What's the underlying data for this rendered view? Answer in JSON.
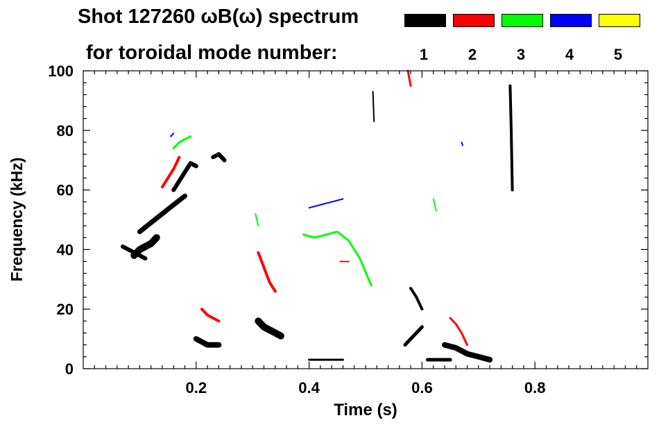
{
  "chart_data": {
    "type": "heatmap",
    "title": "Shot 127260 ωB(ω) spectrum",
    "subtitle": "for toroidal mode number:",
    "xlabel": "Time (s)",
    "ylabel": "Frequency (kHz)",
    "xlim": [
      0.0,
      1.0
    ],
    "ylim": [
      0,
      100
    ],
    "xticks": [
      0.2,
      0.4,
      0.6,
      0.8
    ],
    "xtick_labels": [
      "0.2",
      "0.4",
      "0.6",
      "0.8"
    ],
    "yticks": [
      0,
      20,
      40,
      60,
      80,
      100
    ],
    "ytick_labels": [
      "0",
      "20",
      "40",
      "60",
      "80",
      "100"
    ],
    "grid": false,
    "legend_placement": "top-right",
    "legend": [
      {
        "name": "1",
        "color": "#000000"
      },
      {
        "name": "2",
        "color": "#ff0000"
      },
      {
        "name": "3",
        "color": "#00ff00"
      },
      {
        "name": "4",
        "color": "#0000ff"
      },
      {
        "name": "5",
        "color": "#ffff00"
      }
    ],
    "series": [
      {
        "name": "1",
        "color": "#000000",
        "segments": [
          {
            "t": [
              0.07,
              0.08,
              0.09,
              0.1,
              0.11
            ],
            "f": [
              41,
              40,
              39,
              38,
              37
            ],
            "width": 6
          },
          {
            "t": [
              0.09,
              0.1,
              0.11,
              0.12,
              0.13
            ],
            "f": [
              38,
              40,
              41,
              42,
              44
            ],
            "width": 10
          },
          {
            "t": [
              0.1,
              0.12,
              0.14,
              0.16,
              0.18
            ],
            "f": [
              46,
              49,
              52,
              55,
              58
            ],
            "width": 7
          },
          {
            "t": [
              0.16,
              0.17,
              0.18,
              0.19,
              0.2
            ],
            "f": [
              60,
              63,
              66,
              69,
              68
            ],
            "width": 6
          },
          {
            "t": [
              0.2,
              0.21,
              0.22,
              0.23,
              0.24
            ],
            "f": [
              10,
              9,
              8,
              8,
              8
            ],
            "width": 8
          },
          {
            "t": [
              0.23,
              0.24,
              0.25
            ],
            "f": [
              71,
              72,
              70
            ],
            "width": 6
          },
          {
            "t": [
              0.31,
              0.32,
              0.33,
              0.34,
              0.35
            ],
            "f": [
              16,
              14,
              13,
              12,
              11
            ],
            "width": 10
          },
          {
            "t": [
              0.4,
              0.42,
              0.44,
              0.46
            ],
            "f": [
              3,
              3,
              3,
              3
            ],
            "width": 3
          },
          {
            "t": [
              0.57,
              0.58,
              0.59,
              0.6
            ],
            "f": [
              8,
              10,
              12,
              14
            ],
            "width": 5
          },
          {
            "t": [
              0.58,
              0.59,
              0.6
            ],
            "f": [
              27,
              24,
              20
            ],
            "width": 4
          },
          {
            "t": [
              0.61,
              0.62,
              0.63,
              0.64,
              0.65
            ],
            "f": [
              3,
              3,
              3,
              3,
              3
            ],
            "width": 5
          },
          {
            "t": [
              0.64,
              0.66,
              0.68,
              0.7,
              0.72
            ],
            "f": [
              8,
              7,
              5,
              4,
              3
            ],
            "width": 8
          },
          {
            "t": [
              0.756,
              0.758,
              0.76
            ],
            "f": [
              95,
              80,
              60
            ],
            "width": 4
          },
          {
            "t": [
              0.513,
              0.515
            ],
            "f": [
              93,
              83
            ],
            "width": 2
          }
        ]
      },
      {
        "name": "2",
        "color": "#ff0000",
        "segments": [
          {
            "t": [
              0.14,
              0.15,
              0.16,
              0.17
            ],
            "f": [
              61,
              64,
              67,
              71
            ],
            "width": 4
          },
          {
            "t": [
              0.21,
              0.22,
              0.23,
              0.24
            ],
            "f": [
              20,
              18,
              17,
              16
            ],
            "width": 4
          },
          {
            "t": [
              0.31,
              0.32,
              0.33,
              0.34
            ],
            "f": [
              39,
              34,
              29,
              26
            ],
            "width": 4
          },
          {
            "t": [
              0.65,
              0.66,
              0.67,
              0.68
            ],
            "f": [
              17,
              15,
              12,
              8
            ],
            "width": 3
          },
          {
            "t": [
              0.575,
              0.58
            ],
            "f": [
              100,
              95
            ],
            "width": 3
          },
          {
            "t": [
              0.455,
              0.47
            ],
            "f": [
              36,
              36
            ],
            "width": 2
          }
        ]
      },
      {
        "name": "3",
        "color": "#00ff00",
        "segments": [
          {
            "t": [
              0.16,
              0.17,
              0.18,
              0.19
            ],
            "f": [
              74,
              76,
              77,
              78
            ],
            "width": 3
          },
          {
            "t": [
              0.39,
              0.41,
              0.43,
              0.45,
              0.47,
              0.49,
              0.51
            ],
            "f": [
              45,
              44,
              45,
              46,
              43,
              37,
              28
            ],
            "width": 3
          },
          {
            "t": [
              0.62,
              0.625
            ],
            "f": [
              57,
              53
            ],
            "width": 2
          },
          {
            "t": [
              0.305,
              0.31
            ],
            "f": [
              52,
              48
            ],
            "width": 2
          }
        ]
      },
      {
        "name": "4",
        "color": "#0000ff",
        "segments": [
          {
            "t": [
              0.4,
              0.42,
              0.44,
              0.46
            ],
            "f": [
              54,
              55,
              56,
              57
            ],
            "width": 2
          },
          {
            "t": [
              0.155,
              0.16
            ],
            "f": [
              78,
              79
            ],
            "width": 2
          },
          {
            "t": [
              0.67,
              0.672
            ],
            "f": [
              76,
              75
            ],
            "width": 2
          }
        ]
      },
      {
        "name": "5",
        "color": "#ffff00",
        "segments": []
      }
    ]
  }
}
